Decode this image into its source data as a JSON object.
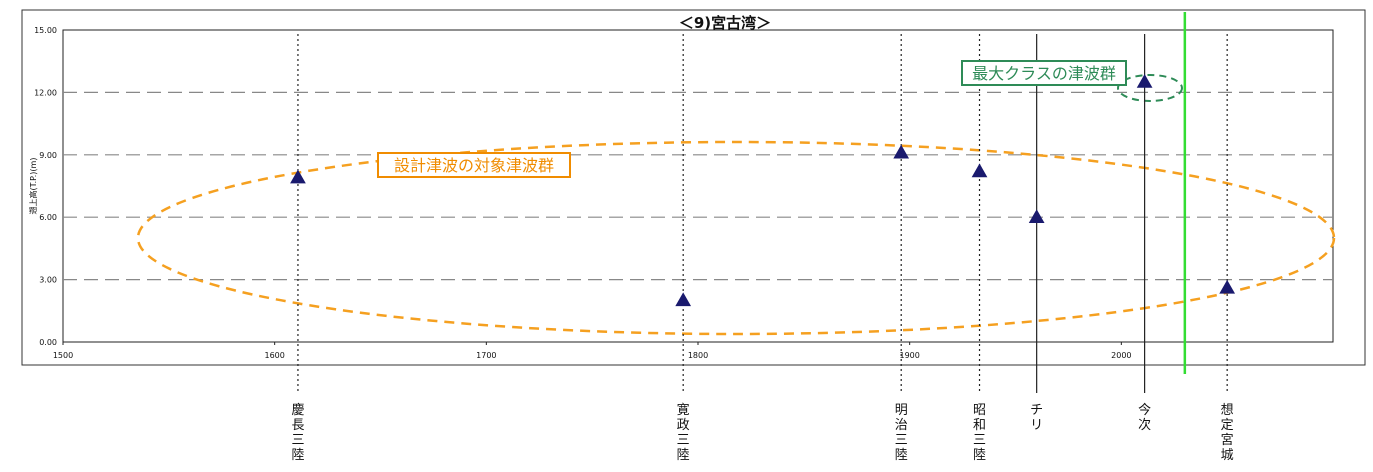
{
  "chart_data": {
    "type": "scatter",
    "title": "＜9)宮古湾＞",
    "ylabel": "遡上高(T.P.)(m)",
    "xlabel": "",
    "xlim": [
      1500,
      2100
    ],
    "ylim": [
      0,
      15
    ],
    "grid": "horizontal dashed",
    "xticks": [
      "1500",
      "1600",
      "1700",
      "1800",
      "1900",
      "2000"
    ],
    "yticks": [
      "0.00",
      "3.00",
      "6.00",
      "9.00",
      "12.00",
      "15.00"
    ],
    "series": [
      {
        "marker": "triangle",
        "color": "#1a1a6e",
        "points": [
          {
            "x": 1611,
            "y": 7.9
          },
          {
            "x": 1793,
            "y": 2.0
          },
          {
            "x": 1896,
            "y": 9.1
          },
          {
            "x": 1933,
            "y": 8.2
          },
          {
            "x": 1960,
            "y": 6.0
          },
          {
            "x": 2011,
            "y": 12.5
          },
          {
            "x": 2050,
            "y": 2.6
          }
        ]
      }
    ],
    "events": [
      {
        "x": 1611,
        "label": "慶長三陸",
        "line": "dotted"
      },
      {
        "x": 1793,
        "label": "寛政三陸",
        "line": "dotted"
      },
      {
        "x": 1896,
        "label": "明治三陸",
        "line": "dotted"
      },
      {
        "x": 1933,
        "label": "昭和三陸",
        "line": "dotted"
      },
      {
        "x": 1960,
        "label": "チリ",
        "line": "solid"
      },
      {
        "x": 2011,
        "label": "今次",
        "line": "solid"
      },
      {
        "x": 2050,
        "label": "想定宮城",
        "line": "dotted"
      }
    ],
    "divider_x": 2030,
    "annotations": [
      {
        "text": "設計津波の対象津波群",
        "color": "#f08c00"
      },
      {
        "text": "最大クラスの津波群",
        "color": "#2e8b57"
      }
    ]
  }
}
